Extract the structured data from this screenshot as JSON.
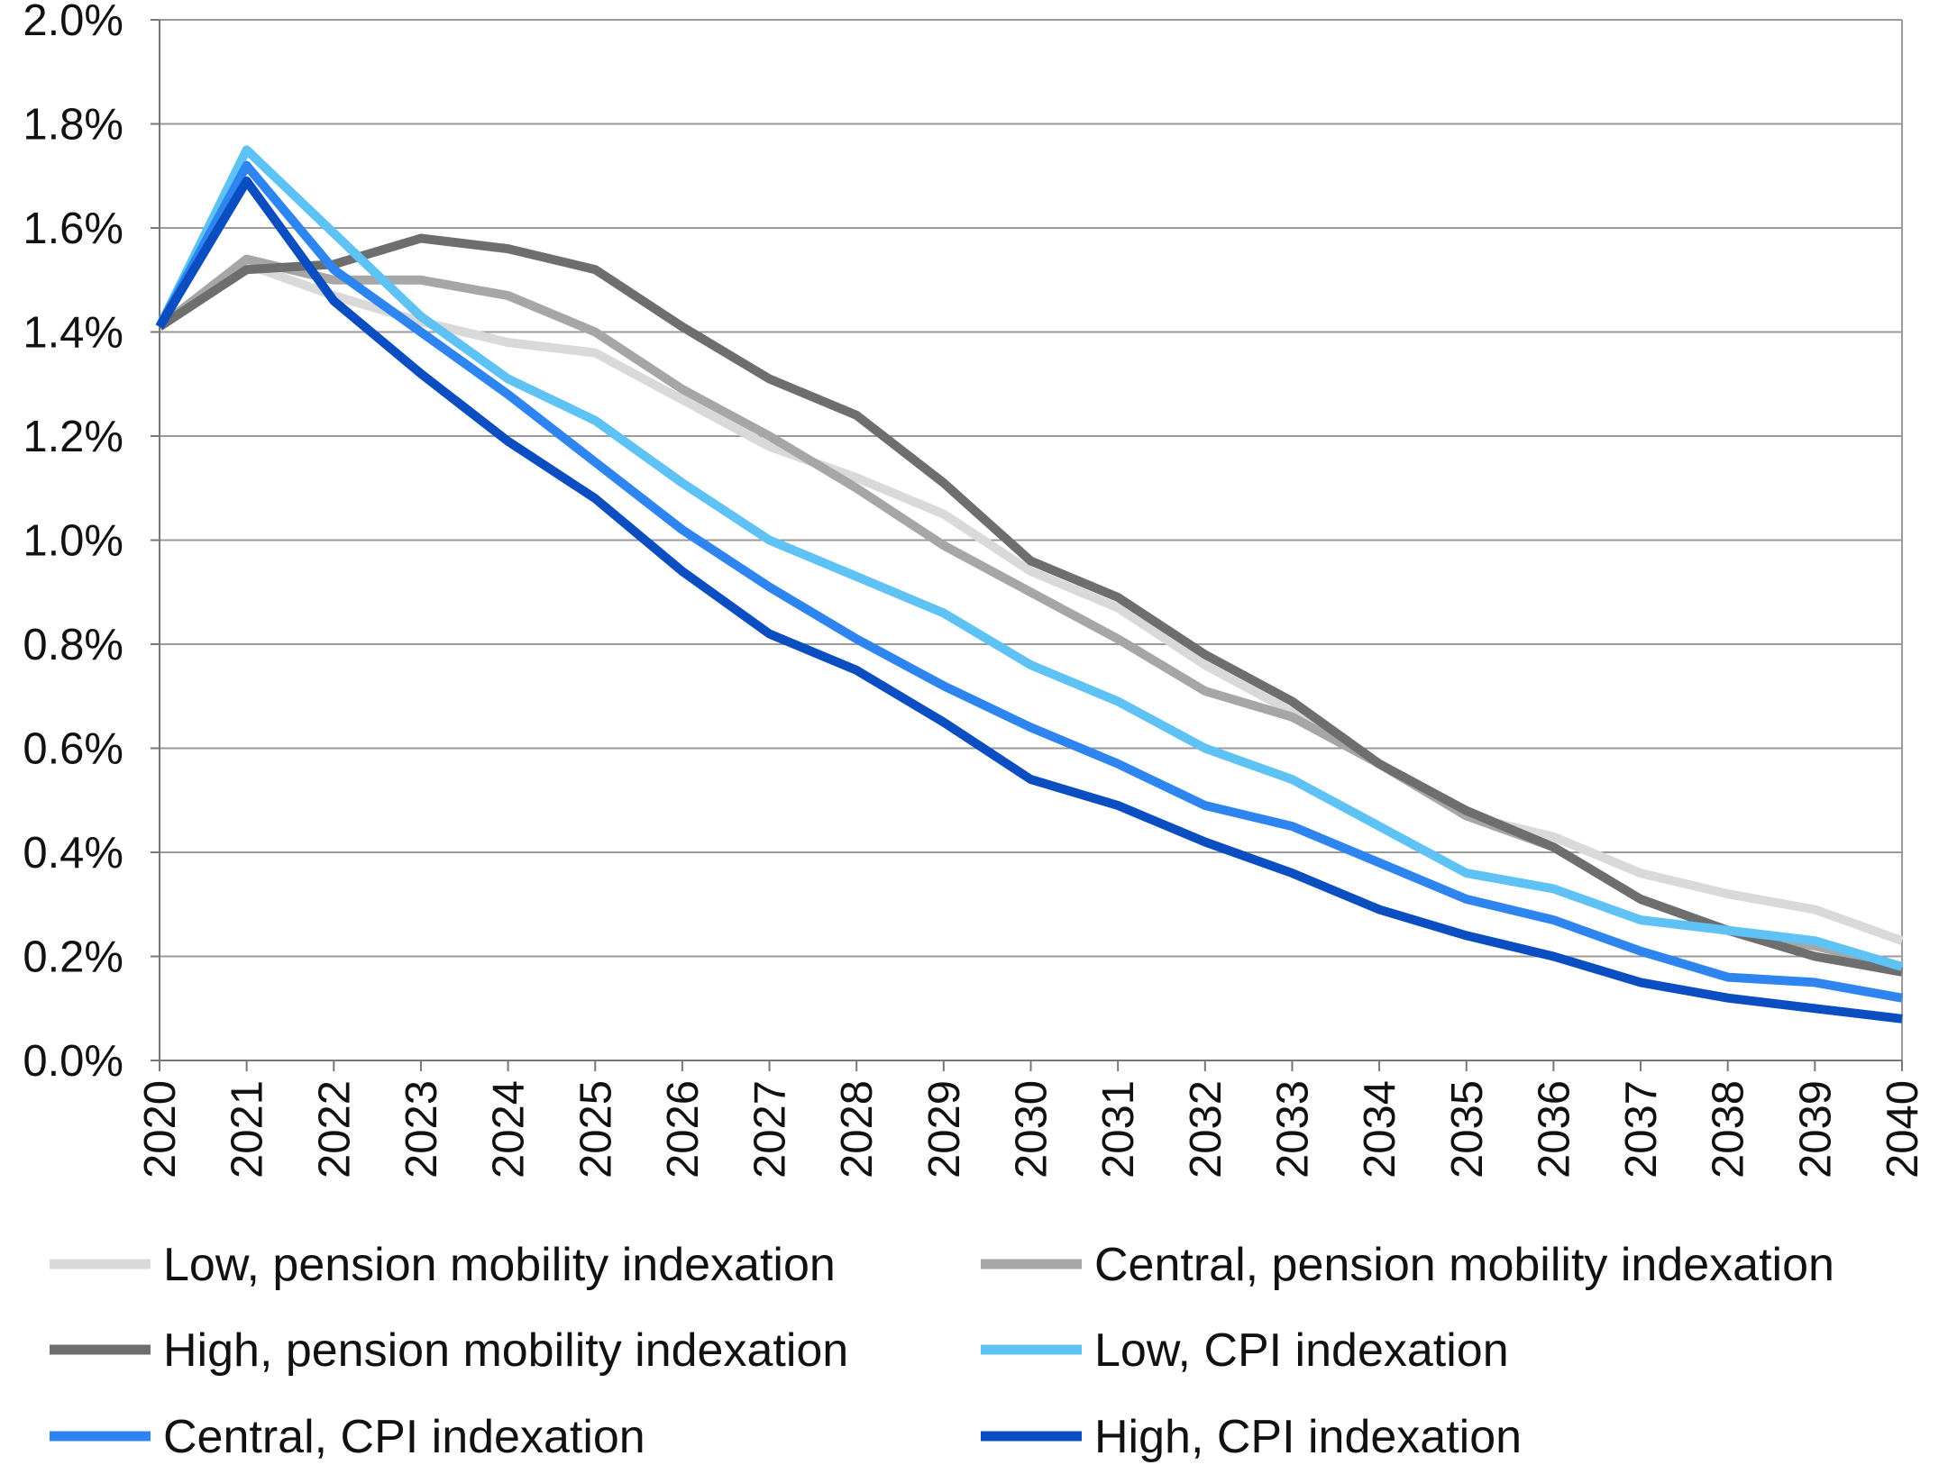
{
  "chart_data": {
    "type": "line",
    "title": "",
    "xlabel": "",
    "ylabel": "",
    "x": [
      "2020",
      "2021",
      "2022",
      "2023",
      "2024",
      "2025",
      "2026",
      "2027",
      "2028",
      "2029",
      "2030",
      "2031",
      "2032",
      "2033",
      "2034",
      "2035",
      "2036",
      "2037",
      "2038",
      "2039",
      "2040"
    ],
    "ylim": [
      0,
      2.0
    ],
    "yticks": [
      "0.0%",
      "0.2%",
      "0.4%",
      "0.6%",
      "0.8%",
      "1.0%",
      "1.2%",
      "1.4%",
      "1.6%",
      "1.8%",
      "2.0%"
    ],
    "grid": true,
    "legend_position": "bottom",
    "series": [
      {
        "name": "Low, pension mobility indexation",
        "color": "#d9d9d9",
        "values": [
          1.41,
          1.53,
          1.47,
          1.42,
          1.38,
          1.36,
          1.27,
          1.18,
          1.12,
          1.05,
          0.94,
          0.87,
          0.76,
          0.67,
          0.57,
          0.47,
          0.43,
          0.36,
          0.32,
          0.29,
          0.23
        ]
      },
      {
        "name": "Central, pension mobility indexation",
        "color": "#a6a6a6",
        "values": [
          1.41,
          1.54,
          1.5,
          1.5,
          1.47,
          1.4,
          1.29,
          1.2,
          1.1,
          0.99,
          0.9,
          0.81,
          0.71,
          0.66,
          0.57,
          0.47,
          0.41,
          0.31,
          0.25,
          0.22,
          0.18
        ]
      },
      {
        "name": "High, pension mobility indexation",
        "color": "#6e6e6e",
        "values": [
          1.41,
          1.52,
          1.53,
          1.58,
          1.56,
          1.52,
          1.41,
          1.31,
          1.24,
          1.11,
          0.96,
          0.89,
          0.78,
          0.69,
          0.57,
          0.48,
          0.41,
          0.31,
          0.25,
          0.2,
          0.17
        ]
      },
      {
        "name": "Low, CPI indexation",
        "color": "#5ec2f5",
        "values": [
          1.41,
          1.75,
          1.59,
          1.43,
          1.31,
          1.23,
          1.11,
          1.0,
          0.93,
          0.86,
          0.76,
          0.69,
          0.6,
          0.54,
          0.45,
          0.36,
          0.33,
          0.27,
          0.25,
          0.23,
          0.18
        ]
      },
      {
        "name": "Central, CPI indexation",
        "color": "#2f85f0",
        "values": [
          1.41,
          1.72,
          1.52,
          1.4,
          1.28,
          1.15,
          1.02,
          0.91,
          0.81,
          0.72,
          0.64,
          0.57,
          0.49,
          0.45,
          0.38,
          0.31,
          0.27,
          0.21,
          0.16,
          0.15,
          0.12
        ]
      },
      {
        "name": "High, CPI indexation",
        "color": "#0a4ec2",
        "values": [
          1.41,
          1.69,
          1.46,
          1.32,
          1.19,
          1.08,
          0.94,
          0.82,
          0.75,
          0.65,
          0.54,
          0.49,
          0.42,
          0.36,
          0.29,
          0.24,
          0.2,
          0.15,
          0.12,
          0.1,
          0.08
        ]
      }
    ]
  }
}
